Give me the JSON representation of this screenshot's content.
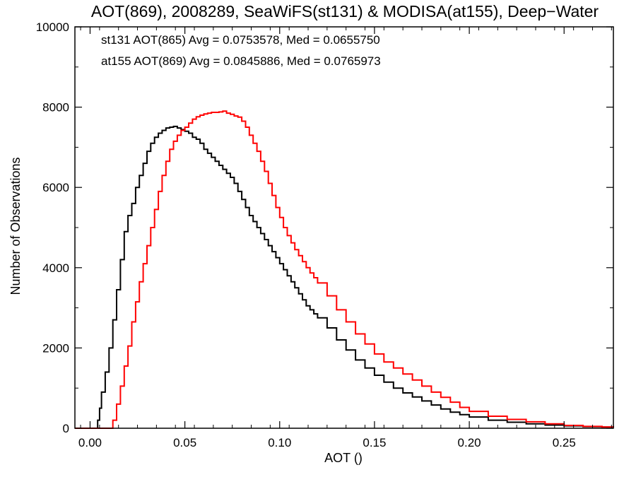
{
  "chart_data": {
    "type": "line",
    "title": "AOT(869), 2008289, SeaWiFS(st131) & MODISA(at155), Deep−Water",
    "xlabel": "AOT ()",
    "ylabel": "Number of Observations",
    "xlim": [
      -0.008,
      0.276
    ],
    "ylim": [
      0,
      10000
    ],
    "xticks": [
      "0.00",
      "0.05",
      "0.10",
      "0.15",
      "0.20",
      "0.25"
    ],
    "xtick_values": [
      0.0,
      0.05,
      0.1,
      0.15,
      0.2,
      0.25
    ],
    "yticks": [
      "0",
      "2000",
      "4000",
      "6000",
      "8000",
      "10000"
    ],
    "ytick_values": [
      0,
      2000,
      4000,
      6000,
      8000,
      10000
    ],
    "grid": false,
    "step": true,
    "annotations": [
      {
        "text": "st131 AOT(865) Avg = 0.0753578, Med = 0.0655750",
        "color": "#000000"
      },
      {
        "text": "at155 AOT(869) Avg = 0.0845886, Med = 0.0765973",
        "color": "#ff0000"
      }
    ],
    "series": [
      {
        "color": "#000000",
        "x": [
          -0.008,
          0.0,
          0.003,
          0.004,
          0.005,
          0.006,
          0.008,
          0.01,
          0.012,
          0.014,
          0.016,
          0.018,
          0.02,
          0.022,
          0.024,
          0.026,
          0.028,
          0.03,
          0.032,
          0.034,
          0.036,
          0.038,
          0.04,
          0.042,
          0.044,
          0.046,
          0.048,
          0.05,
          0.052,
          0.054,
          0.056,
          0.058,
          0.06,
          0.062,
          0.064,
          0.066,
          0.068,
          0.07,
          0.072,
          0.074,
          0.076,
          0.078,
          0.08,
          0.082,
          0.084,
          0.086,
          0.088,
          0.09,
          0.092,
          0.094,
          0.096,
          0.098,
          0.1,
          0.102,
          0.104,
          0.106,
          0.108,
          0.11,
          0.112,
          0.114,
          0.116,
          0.118,
          0.12,
          0.125,
          0.13,
          0.135,
          0.14,
          0.145,
          0.15,
          0.155,
          0.16,
          0.165,
          0.17,
          0.175,
          0.18,
          0.185,
          0.19,
          0.195,
          0.2,
          0.21,
          0.22,
          0.23,
          0.24,
          0.25,
          0.26,
          0.27,
          0.276
        ],
        "y": [
          0,
          0,
          0,
          200,
          500,
          900,
          1400,
          2000,
          2700,
          3450,
          4200,
          4900,
          5300,
          5600,
          6000,
          6300,
          6600,
          6900,
          7100,
          7250,
          7350,
          7420,
          7480,
          7500,
          7520,
          7480,
          7440,
          7400,
          7350,
          7250,
          7200,
          7100,
          6950,
          6850,
          6750,
          6650,
          6550,
          6450,
          6350,
          6250,
          6100,
          5900,
          5700,
          5500,
          5300,
          5150,
          5000,
          4850,
          4700,
          4550,
          4400,
          4250,
          4100,
          3950,
          3800,
          3650,
          3500,
          3350,
          3200,
          3050,
          2950,
          2850,
          2750,
          2500,
          2200,
          1950,
          1700,
          1500,
          1320,
          1150,
          1000,
          880,
          780,
          680,
          580,
          480,
          400,
          340,
          280,
          200,
          150,
          110,
          80,
          60,
          40,
          30,
          20
        ]
      },
      {
        "color": "#ff0000",
        "x": [
          -0.008,
          0.0,
          0.005,
          0.01,
          0.012,
          0.014,
          0.016,
          0.018,
          0.02,
          0.022,
          0.024,
          0.026,
          0.028,
          0.03,
          0.032,
          0.034,
          0.036,
          0.038,
          0.04,
          0.042,
          0.044,
          0.046,
          0.048,
          0.05,
          0.052,
          0.054,
          0.056,
          0.058,
          0.06,
          0.062,
          0.064,
          0.066,
          0.068,
          0.07,
          0.072,
          0.074,
          0.076,
          0.078,
          0.08,
          0.082,
          0.084,
          0.086,
          0.088,
          0.09,
          0.092,
          0.094,
          0.096,
          0.098,
          0.1,
          0.102,
          0.104,
          0.106,
          0.108,
          0.11,
          0.112,
          0.114,
          0.116,
          0.118,
          0.12,
          0.125,
          0.13,
          0.135,
          0.14,
          0.145,
          0.15,
          0.155,
          0.16,
          0.165,
          0.17,
          0.175,
          0.18,
          0.185,
          0.19,
          0.195,
          0.2,
          0.21,
          0.22,
          0.23,
          0.24,
          0.25,
          0.26,
          0.27,
          0.276
        ],
        "y": [
          0,
          0,
          0,
          0,
          200,
          600,
          1050,
          1550,
          2050,
          2650,
          3150,
          3650,
          4100,
          4550,
          5000,
          5450,
          5900,
          6300,
          6650,
          6950,
          7150,
          7300,
          7420,
          7500,
          7600,
          7700,
          7760,
          7800,
          7830,
          7850,
          7870,
          7870,
          7880,
          7900,
          7850,
          7820,
          7780,
          7750,
          7650,
          7500,
          7300,
          7100,
          6900,
          6650,
          6400,
          6100,
          5800,
          5500,
          5250,
          5000,
          4800,
          4620,
          4450,
          4300,
          4150,
          4000,
          3870,
          3750,
          3620,
          3300,
          2950,
          2650,
          2350,
          2100,
          1850,
          1650,
          1500,
          1350,
          1200,
          1050,
          900,
          770,
          650,
          520,
          420,
          300,
          220,
          160,
          110,
          70,
          45,
          30,
          20
        ]
      }
    ]
  }
}
